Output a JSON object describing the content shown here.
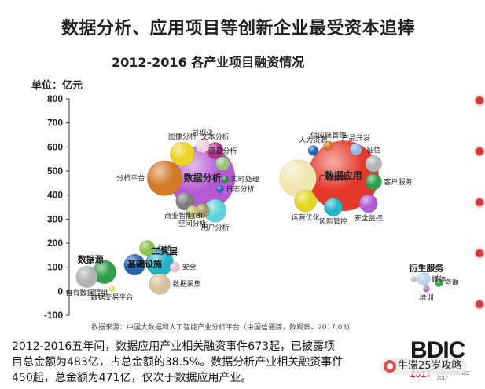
{
  "title": "数据分析、应用项目等创新企业最受资本追捧",
  "subtitle": "2012-2016 各产业项目融资情况",
  "unit_label": "单位：亿元",
  "source": "数据来源：中国大数据和人工智能产业分析平台（中国信通院，数观察，2017.03）",
  "summary": [
    "2012-2016五年间，数据应用产业相关融资事件673起，已披露项",
    "目总金额为483亿，占总金额的38.5%。数据分析产业相关融资事件",
    "450起，总金额为471亿，仅次于数据应用产业。"
  ],
  "logo": {
    "word": "BDIC",
    "year": "2017",
    "sub": "CONFERENCE 2017"
  },
  "watermark": "牛滞25岁攻略",
  "chart_data": {
    "type": "scatter",
    "title": "2012-2016 各产业项目融资情况",
    "ylabel": "单位：亿元",
    "ylim": [
      -100,
      800
    ],
    "yticks": [
      -100,
      0,
      100,
      200,
      300,
      400,
      500,
      600,
      700,
      800
    ],
    "grid": false,
    "legend": "none",
    "group_labels": [
      {
        "text": "数据源",
        "x": 1.35,
        "y": 120
      },
      {
        "text": "基础设施",
        "x": 3.5,
        "y": 100
      },
      {
        "text": "工具层",
        "x": 4.3,
        "y": 155
      },
      {
        "text": "衍生服务",
        "x": 14.7,
        "y": 85
      }
    ],
    "points": [
      {
        "label": "自有数据提供",
        "x": 1.2,
        "y": 60,
        "size": 460,
        "color": "#b3b3b3"
      },
      {
        "label": "",
        "x": 1.9,
        "y": 80,
        "size": 540,
        "color": "#2e9e4a"
      },
      {
        "label": "数据交易平台",
        "x": 2.2,
        "y": 10,
        "size": 30,
        "color": "#f3e04b"
      },
      {
        "label": "",
        "x": 3.1,
        "y": 110,
        "size": 440,
        "color": "#2265b0"
      },
      {
        "label": "存储",
        "x": 3.6,
        "y": 180,
        "size": 230,
        "color": "#8bc14a"
      },
      {
        "label": "",
        "x": 4.1,
        "y": 120,
        "size": 740,
        "color": "#24b3c9"
      },
      {
        "label": "数据采集",
        "x": 4.1,
        "y": 30,
        "size": 430,
        "color": "#d8c09a"
      },
      {
        "label": "安全",
        "x": 4.7,
        "y": 100,
        "size": 100,
        "color": "#e1c3dd"
      },
      {
        "label": "分析平台",
        "x": 4.3,
        "y": 470,
        "size": 1220,
        "color": "#d27a28"
      },
      {
        "label": "图像分析",
        "x": 5.0,
        "y": 570,
        "size": 590,
        "color": "#ecd223"
      },
      {
        "label": "可视化",
        "x": 5.8,
        "y": 605,
        "size": 190,
        "color": "#f5cde1"
      },
      {
        "label": "文本分析",
        "x": 6.3,
        "y": 585,
        "size": 270,
        "color": "#b0308e"
      },
      {
        "label": "数据分析",
        "x": 5.8,
        "y": 470,
        "size": 4200,
        "color": "#b55ad4"
      },
      {
        "label": "语音分析",
        "x": 6.6,
        "y": 530,
        "size": 200,
        "color": "#9ac275"
      },
      {
        "label": "实时处理",
        "x": 6.7,
        "y": 465,
        "size": 50,
        "color": "#2d8a45"
      },
      {
        "label": "日志分析",
        "x": 6.5,
        "y": 425,
        "size": 50,
        "color": "#2265b0"
      },
      {
        "label": "商业智能(BI)",
        "x": 5.1,
        "y": 375,
        "size": 330,
        "color": "#7d7d7d"
      },
      {
        "label": "",
        "x": 5.8,
        "y": 335,
        "size": 200,
        "color": "#9f9a5e"
      },
      {
        "label": "空间分析",
        "x": 5.4,
        "y": 330,
        "size": 150,
        "color": "#c7c26a"
      },
      {
        "label": "用户分析",
        "x": 6.3,
        "y": 335,
        "size": 520,
        "color": "#5fd3dc"
      },
      {
        "label": "人力资源",
        "x": 10.2,
        "y": 585,
        "size": 100,
        "color": "#2265b0"
      },
      {
        "label": "供应链管理",
        "x": 10.8,
        "y": 605,
        "size": 90,
        "color": "#d27a28"
      },
      {
        "label": "产品开发",
        "x": 11.9,
        "y": 590,
        "size": 140,
        "color": "#8fb6df"
      },
      {
        "label": "征信",
        "x": 12.6,
        "y": 530,
        "size": 270,
        "color": "#b3b3b3"
      },
      {
        "label": "客户服务",
        "x": 12.6,
        "y": 455,
        "size": 260,
        "color": "#2e9e4a"
      },
      {
        "label": "广告营销",
        "x": 9.6,
        "y": 470,
        "size": 1330,
        "color": "#f0e6b0"
      },
      {
        "label": "数据应用",
        "x": 11.4,
        "y": 480,
        "size": 4900,
        "color": "#e53a2b"
      },
      {
        "label": "运营优化",
        "x": 9.9,
        "y": 375,
        "size": 480,
        "color": "#e4d624"
      },
      {
        "label": "风险管控",
        "x": 11.0,
        "y": 350,
        "size": 330,
        "color": "#24b3c9"
      },
      {
        "label": "安全监控",
        "x": 12.4,
        "y": 365,
        "size": 330,
        "color": "#b55ad4"
      },
      {
        "label": "媒体",
        "x": 14.6,
        "y": 50,
        "size": 160,
        "color": "#b9d7ea"
      },
      {
        "label": "",
        "x": 14.2,
        "y": 50,
        "size": 30,
        "color": "#c4c4c4"
      },
      {
        "label": "咨询",
        "x": 15.2,
        "y": 35,
        "size": 60,
        "color": "#2e9e4a"
      },
      {
        "label": "培训",
        "x": 14.7,
        "y": 10,
        "size": 40,
        "color": "#b86fcf"
      }
    ]
  }
}
